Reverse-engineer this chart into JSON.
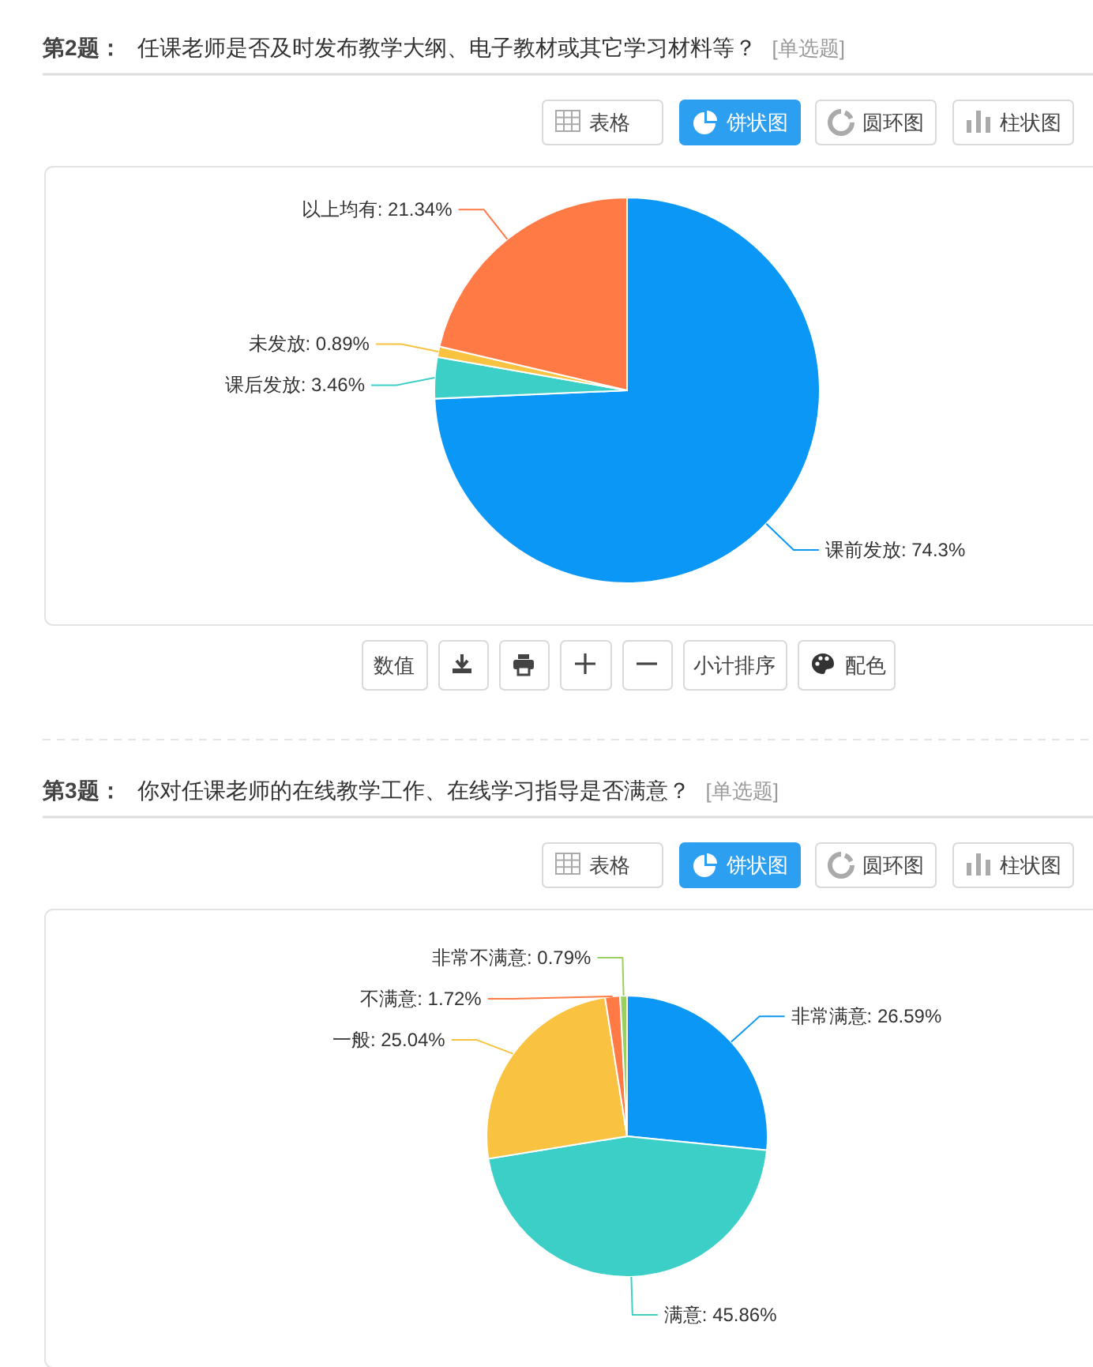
{
  "chart_data": [
    {
      "type": "pie",
      "title": "任课老师是否及时发布教学大纲、电子教材或其它学习材料等？",
      "subtitle": "[单选题]",
      "categories": [
        "课前发放",
        "课后发放",
        "未发放",
        "以上均有"
      ],
      "values": [
        74.3,
        3.46,
        0.89,
        21.34
      ],
      "colors": [
        "#0b97f5",
        "#3ccfc7",
        "#f9c341",
        "#ff7a45"
      ],
      "value_labels": [
        "74.3%",
        "3.46%",
        "0.89%",
        "21.34%"
      ],
      "annotations": [
        "第2题：",
        "表格",
        "饼状图",
        "圆环图",
        "柱状图",
        "数值",
        "小计排序",
        "配色"
      ]
    },
    {
      "type": "pie",
      "title": "你对任课老师的在线教学工作、在线学习指导是否满意？",
      "subtitle": "[单选题]",
      "categories": [
        "非常满意",
        "满意",
        "一般",
        "不满意",
        "非常不满意"
      ],
      "values": [
        26.59,
        45.86,
        25.04,
        1.72,
        0.79
      ],
      "colors": [
        "#0b97f5",
        "#3ccfc7",
        "#f9c341",
        "#ff7a45",
        "#9ad05e"
      ],
      "value_labels": [
        "26.59%",
        "45.86%",
        "25.04%",
        "1.72%",
        "0.79%"
      ],
      "annotations": [
        "第3题：",
        "表格",
        "饼状图",
        "圆环图",
        "柱状图"
      ]
    }
  ]
}
